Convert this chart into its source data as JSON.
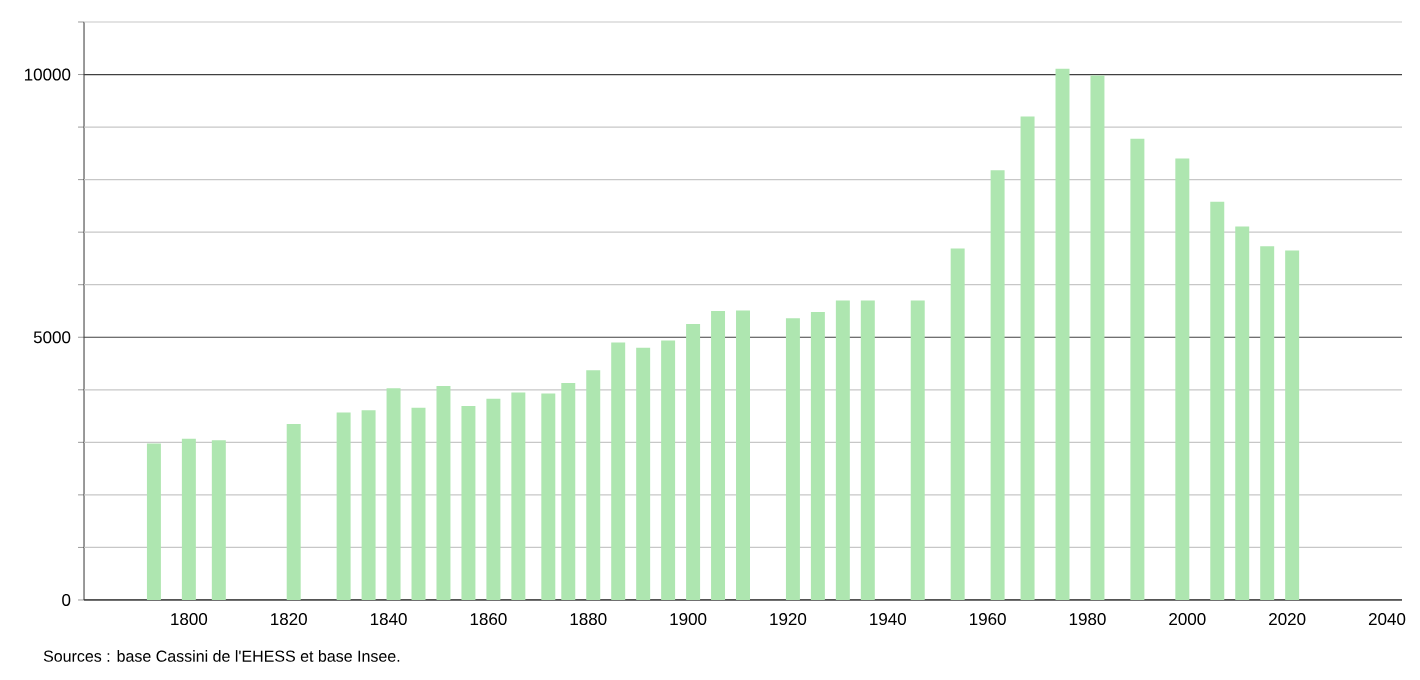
{
  "chart_data": {
    "type": "bar",
    "color": "#aee6b0",
    "x": [
      1793,
      1800,
      1806,
      1821,
      1831,
      1836,
      1841,
      1846,
      1851,
      1856,
      1861,
      1866,
      1872,
      1876,
      1881,
      1886,
      1891,
      1896,
      1901,
      1906,
      1911,
      1921,
      1926,
      1931,
      1936,
      1946,
      1954,
      1962,
      1968,
      1975,
      1982,
      1990,
      1999,
      2006,
      2011,
      2016,
      2021
    ],
    "values": [
      2980,
      3070,
      3040,
      3350,
      3570,
      3610,
      4030,
      3660,
      4070,
      3690,
      3830,
      3950,
      3930,
      4130,
      4370,
      4900,
      4800,
      4940,
      5250,
      5500,
      5510,
      5360,
      5480,
      5700,
      5700,
      5700,
      6690,
      8180,
      9200,
      10110,
      9980,
      8780,
      8400,
      7580,
      7110,
      6730,
      6650
    ],
    "xlim": [
      1779,
      2043
    ],
    "ylim": [
      0,
      11000
    ],
    "xticks": [
      1800,
      1820,
      1840,
      1860,
      1880,
      1900,
      1920,
      1940,
      1960,
      1980,
      2000,
      2020,
      2040
    ],
    "yticks": [
      0,
      {
        "value": 1000,
        "label": null
      },
      {
        "value": 2000,
        "label": null
      },
      {
        "value": 3000,
        "label": null
      },
      {
        "value": 4000,
        "label": null
      },
      5000,
      {
        "value": 6000,
        "label": null
      },
      {
        "value": 7000,
        "label": null
      },
      {
        "value": 8000,
        "label": null
      },
      {
        "value": 9000,
        "label": null
      },
      10000,
      {
        "value": 11000,
        "label": null
      }
    ],
    "grid": "y",
    "annotations": [
      "Sources : base Cassini de l'EHESS et base Insee."
    ]
  }
}
